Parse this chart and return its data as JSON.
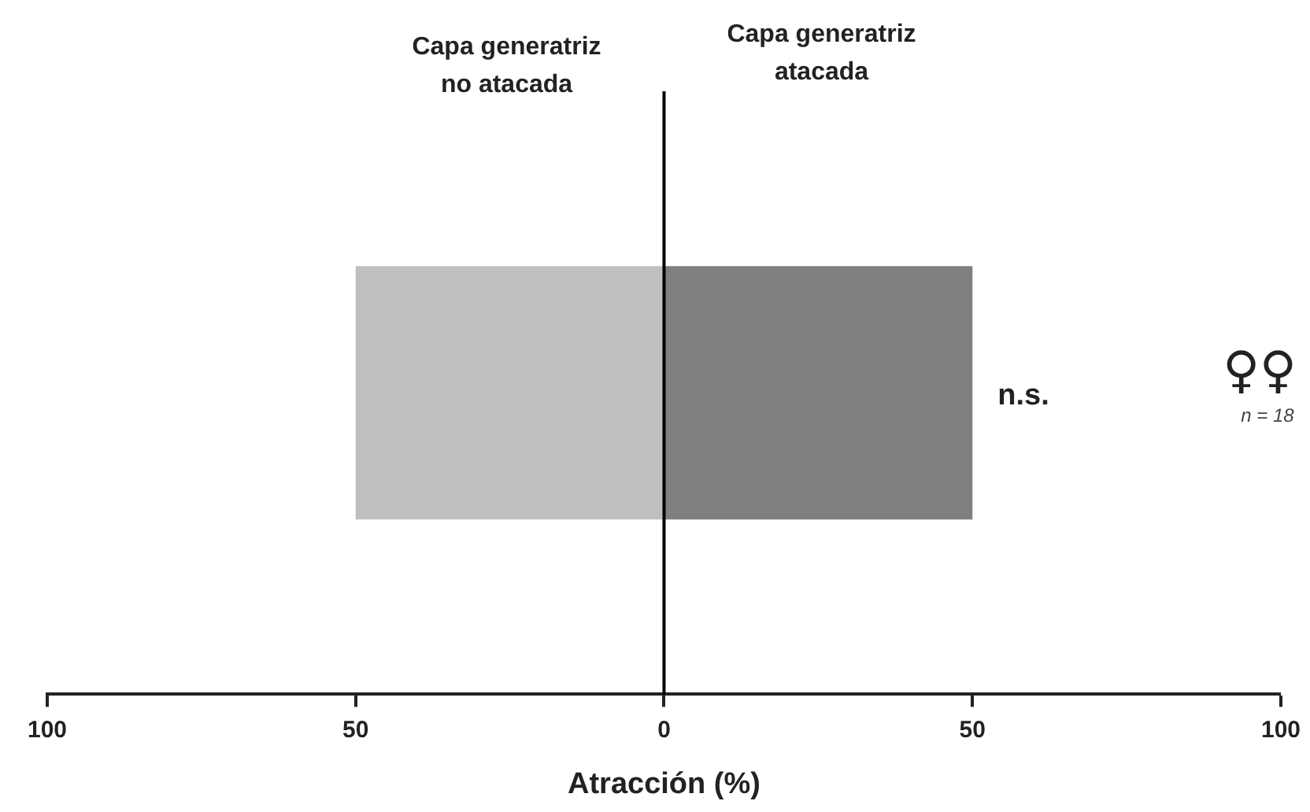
{
  "chart_data": {
    "type": "bar",
    "orientation": "horizontal",
    "stacked": true,
    "categories": [
      null
    ],
    "series": [
      {
        "color": "#bfbfbf",
        "values": [
          -50
        ]
      },
      {
        "color": "#7f7f7f",
        "values": [
          50
        ]
      }
    ],
    "xlabel": "Atracción (%)",
    "xlim": [
      -100,
      100
    ],
    "xticks": [
      {
        "value": -100,
        "label": "100"
      },
      {
        "value": -50,
        "label": "50"
      },
      0,
      50,
      100
    ],
    "ref_lines": [
      {
        "axis": "x",
        "value": 0,
        "color": "#000000"
      }
    ],
    "annotations": [
      "Capa generatriz no atacada",
      "Capa generatriz atacada",
      "n.s.",
      "♀♀",
      "n = 18"
    ],
    "tick_labels": "x",
    "legend": false
  }
}
